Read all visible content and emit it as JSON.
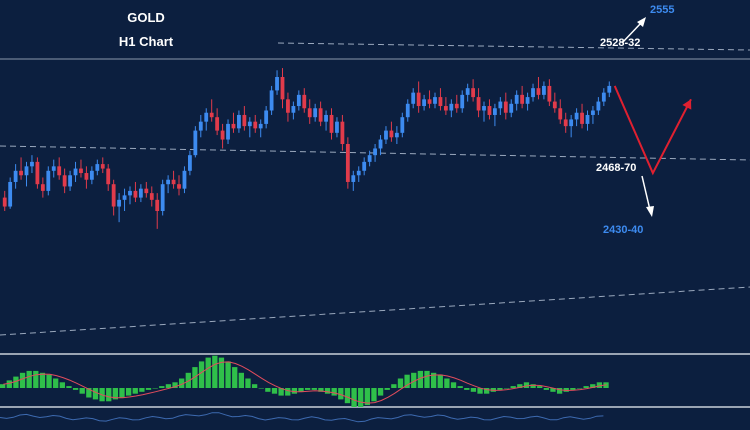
{
  "chart_data": {
    "type": "candlestick",
    "title": "GOLD",
    "subtitle": "H1 Chart",
    "price_range": [
      2410,
      2560
    ],
    "ohlc": [
      [
        2476,
        2479,
        2470,
        2472
      ],
      [
        2472,
        2485,
        2471,
        2483
      ],
      [
        2483,
        2491,
        2480,
        2488
      ],
      [
        2488,
        2494,
        2484,
        2486
      ],
      [
        2486,
        2492,
        2481,
        2490
      ],
      [
        2490,
        2495,
        2487,
        2492
      ],
      [
        2492,
        2494,
        2480,
        2482
      ],
      [
        2482,
        2485,
        2476,
        2479
      ],
      [
        2479,
        2490,
        2477,
        2488
      ],
      [
        2488,
        2493,
        2485,
        2490
      ],
      [
        2490,
        2494,
        2484,
        2486
      ],
      [
        2486,
        2489,
        2478,
        2481
      ],
      [
        2481,
        2488,
        2479,
        2486
      ],
      [
        2486,
        2492,
        2483,
        2489
      ],
      [
        2489,
        2493,
        2485,
        2487
      ],
      [
        2487,
        2490,
        2480,
        2484
      ],
      [
        2484,
        2490,
        2482,
        2488
      ],
      [
        2488,
        2493,
        2486,
        2491
      ],
      [
        2491,
        2494,
        2487,
        2489
      ],
      [
        2489,
        2491,
        2479,
        2482
      ],
      [
        2482,
        2484,
        2468,
        2472
      ],
      [
        2472,
        2478,
        2465,
        2475
      ],
      [
        2475,
        2480,
        2470,
        2477
      ],
      [
        2477,
        2481,
        2473,
        2479
      ],
      [
        2479,
        2483,
        2474,
        2476
      ],
      [
        2476,
        2482,
        2474,
        2480
      ],
      [
        2480,
        2483,
        2476,
        2478
      ],
      [
        2478,
        2481,
        2472,
        2475
      ],
      [
        2475,
        2478,
        2462,
        2470
      ],
      [
        2470,
        2484,
        2468,
        2482
      ],
      [
        2482,
        2486,
        2478,
        2484
      ],
      [
        2484,
        2488,
        2480,
        2482
      ],
      [
        2482,
        2486,
        2477,
        2480
      ],
      [
        2480,
        2490,
        2478,
        2488
      ],
      [
        2488,
        2497,
        2486,
        2495
      ],
      [
        2495,
        2508,
        2494,
        2506
      ],
      [
        2506,
        2513,
        2503,
        2510
      ],
      [
        2510,
        2516,
        2506,
        2514
      ],
      [
        2514,
        2520,
        2510,
        2512
      ],
      [
        2512,
        2516,
        2504,
        2506
      ],
      [
        2506,
        2509,
        2498,
        2502
      ],
      [
        2502,
        2511,
        2500,
        2509
      ],
      [
        2509,
        2514,
        2505,
        2507
      ],
      [
        2507,
        2515,
        2505,
        2513
      ],
      [
        2513,
        2517,
        2506,
        2508
      ],
      [
        2508,
        2512,
        2503,
        2510
      ],
      [
        2510,
        2513,
        2505,
        2507
      ],
      [
        2507,
        2511,
        2503,
        2509
      ],
      [
        2509,
        2517,
        2507,
        2515
      ],
      [
        2515,
        2526,
        2513,
        2524
      ],
      [
        2524,
        2533,
        2522,
        2530
      ],
      [
        2530,
        2534,
        2516,
        2520
      ],
      [
        2520,
        2523,
        2510,
        2514
      ],
      [
        2514,
        2519,
        2511,
        2517
      ],
      [
        2517,
        2524,
        2515,
        2522
      ],
      [
        2522,
        2525,
        2514,
        2516
      ],
      [
        2516,
        2520,
        2509,
        2512
      ],
      [
        2512,
        2518,
        2510,
        2516
      ],
      [
        2516,
        2519,
        2508,
        2510
      ],
      [
        2510,
        2515,
        2506,
        2513
      ],
      [
        2513,
        2516,
        2502,
        2505
      ],
      [
        2505,
        2512,
        2503,
        2510
      ],
      [
        2510,
        2513,
        2497,
        2500
      ],
      [
        2500,
        2503,
        2480,
        2483
      ],
      [
        2483,
        2488,
        2479,
        2486
      ],
      [
        2486,
        2490,
        2483,
        2488
      ],
      [
        2488,
        2494,
        2486,
        2492
      ],
      [
        2492,
        2497,
        2490,
        2495
      ],
      [
        2495,
        2500,
        2492,
        2498
      ],
      [
        2498,
        2504,
        2495,
        2502
      ],
      [
        2502,
        2508,
        2500,
        2506
      ],
      [
        2506,
        2510,
        2501,
        2503
      ],
      [
        2503,
        2508,
        2500,
        2505
      ],
      [
        2505,
        2514,
        2503,
        2512
      ],
      [
        2512,
        2520,
        2510,
        2518
      ],
      [
        2518,
        2525,
        2516,
        2523
      ],
      [
        2523,
        2528,
        2514,
        2517
      ],
      [
        2517,
        2522,
        2515,
        2520
      ],
      [
        2520,
        2524,
        2516,
        2518
      ],
      [
        2518,
        2523,
        2516,
        2521
      ],
      [
        2521,
        2525,
        2515,
        2517
      ],
      [
        2517,
        2521,
        2513,
        2515
      ],
      [
        2515,
        2520,
        2512,
        2518
      ],
      [
        2518,
        2522,
        2514,
        2516
      ],
      [
        2516,
        2524,
        2514,
        2522
      ],
      [
        2522,
        2527,
        2519,
        2525
      ],
      [
        2525,
        2529,
        2519,
        2521
      ],
      [
        2521,
        2525,
        2512,
        2515
      ],
      [
        2515,
        2519,
        2510,
        2517
      ],
      [
        2517,
        2520,
        2511,
        2513
      ],
      [
        2513,
        2518,
        2508,
        2516
      ],
      [
        2516,
        2521,
        2513,
        2519
      ],
      [
        2519,
        2523,
        2511,
        2514
      ],
      [
        2514,
        2520,
        2512,
        2518
      ],
      [
        2518,
        2524,
        2515,
        2522
      ],
      [
        2522,
        2526,
        2516,
        2518
      ],
      [
        2518,
        2523,
        2515,
        2521
      ],
      [
        2521,
        2527,
        2519,
        2525
      ],
      [
        2525,
        2530,
        2520,
        2522
      ],
      [
        2522,
        2528,
        2520,
        2526
      ],
      [
        2526,
        2529,
        2517,
        2519
      ],
      [
        2519,
        2523,
        2514,
        2516
      ],
      [
        2516,
        2520,
        2509,
        2511
      ],
      [
        2511,
        2514,
        2505,
        2508
      ],
      [
        2508,
        2513,
        2503,
        2511
      ],
      [
        2511,
        2516,
        2508,
        2514
      ],
      [
        2514,
        2518,
        2507,
        2509
      ],
      [
        2509,
        2515,
        2506,
        2513
      ],
      [
        2513,
        2517,
        2509,
        2515
      ],
      [
        2515,
        2521,
        2513,
        2519
      ],
      [
        2519,
        2525,
        2517,
        2523
      ],
      [
        2523,
        2528,
        2521,
        2526
      ]
    ],
    "resistance_zone": "2528-32",
    "target_up": "2555",
    "support_zone": "2468-70",
    "target_down": "2430-40",
    "projection_path": [
      [
        0,
        2526
      ],
      [
        7,
        2487
      ],
      [
        14,
        2520
      ]
    ],
    "legend": "none",
    "grid": false,
    "colors": {
      "background": "#0c1f3f",
      "bull_candle": "#3d8bf0",
      "bear_candle": "#e13b4b",
      "wick": "#8fa6c4",
      "trendline": "#9aa8bd",
      "projection": "#e02030",
      "breakout_arrow": "#ffffff",
      "label_white": "#ffffff",
      "label_blue": "#3d8bf0",
      "histogram": "#2fbf4a",
      "signal_line": "#e14c5c",
      "panel_line": "#3d6ab0"
    },
    "indicator": {
      "type": "macd_histogram",
      "values": [
        2,
        4,
        6,
        8,
        9,
        9,
        8,
        7,
        5,
        3,
        1,
        -1,
        -3,
        -5,
        -6,
        -7,
        -7,
        -6,
        -5,
        -4,
        -3,
        -2,
        -1,
        0,
        1,
        2,
        3,
        5,
        8,
        11,
        14,
        16,
        17,
        16,
        14,
        11,
        8,
        5,
        2,
        0,
        -2,
        -3,
        -4,
        -4,
        -3,
        -2,
        -1,
        -1,
        -2,
        -3,
        -4,
        -6,
        -8,
        -10,
        -10,
        -9,
        -7,
        -4,
        -1,
        2,
        5,
        7,
        8,
        9,
        9,
        8,
        7,
        5,
        3,
        1,
        -1,
        -2,
        -3,
        -3,
        -2,
        -1,
        0,
        1,
        2,
        3,
        2,
        1,
        -1,
        -2,
        -3,
        -2,
        -1,
        0,
        1,
        2,
        3,
        3
      ]
    }
  }
}
